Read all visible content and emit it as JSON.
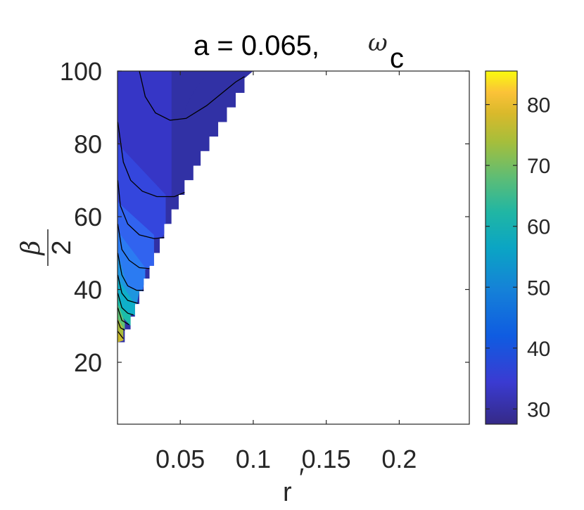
{
  "chart_data": {
    "type": "heatmap",
    "title": "a = 0.065,",
    "title_symbol": "ω",
    "title_symbol_sub": "c",
    "xlabel": "r",
    "xlabel_prime": "′",
    "ylabel_numerator": "β",
    "ylabel_denominator": "2",
    "xlim": [
      0.007,
      0.248
    ],
    "ylim": [
      3,
      100
    ],
    "xticks": [
      {
        "value": 0.05,
        "label": "0.05"
      },
      {
        "value": 0.1,
        "label": "0.1"
      },
      {
        "value": 0.15,
        "label": "0.15"
      },
      {
        "value": 0.2,
        "label": "0.2"
      }
    ],
    "yticks": [
      {
        "value": 20,
        "label": "20"
      },
      {
        "value": 40,
        "label": "40"
      },
      {
        "value": 60,
        "label": "60"
      },
      {
        "value": 80,
        "label": "80"
      },
      {
        "value": 100,
        "label": "100"
      }
    ],
    "colorbar": {
      "colormap": "parula",
      "range": [
        27.5,
        85.5
      ],
      "ticks": [
        {
          "value": 30,
          "label": "30"
        },
        {
          "value": 40,
          "label": "40"
        },
        {
          "value": 50,
          "label": "50"
        },
        {
          "value": 60,
          "label": "60"
        },
        {
          "value": 70,
          "label": "70"
        },
        {
          "value": 80,
          "label": "80"
        }
      ]
    },
    "valid_region_boundary": [
      [
        0.0072,
        25.5
      ],
      [
        0.012,
        25.5
      ],
      [
        0.012,
        29
      ],
      [
        0.016,
        29
      ],
      [
        0.016,
        32.5
      ],
      [
        0.019,
        32.5
      ],
      [
        0.019,
        36
      ],
      [
        0.022,
        36
      ],
      [
        0.022,
        39.5
      ],
      [
        0.025,
        39.5
      ],
      [
        0.025,
        43
      ],
      [
        0.029,
        43
      ],
      [
        0.029,
        46.5
      ],
      [
        0.032,
        46.5
      ],
      [
        0.032,
        50
      ],
      [
        0.036,
        50
      ],
      [
        0.036,
        54
      ],
      [
        0.039,
        54
      ],
      [
        0.039,
        58
      ],
      [
        0.044,
        58
      ],
      [
        0.044,
        62
      ],
      [
        0.049,
        62
      ],
      [
        0.049,
        66
      ],
      [
        0.053,
        66
      ],
      [
        0.053,
        70
      ],
      [
        0.059,
        70
      ],
      [
        0.059,
        74
      ],
      [
        0.064,
        74
      ],
      [
        0.064,
        78
      ],
      [
        0.07,
        78
      ],
      [
        0.07,
        82
      ],
      [
        0.076,
        82
      ],
      [
        0.076,
        86
      ],
      [
        0.082,
        86
      ],
      [
        0.082,
        90
      ],
      [
        0.088,
        90
      ],
      [
        0.088,
        94
      ],
      [
        0.094,
        94
      ],
      [
        0.094,
        98
      ],
      [
        0.1,
        100
      ],
      [
        0.0072,
        100
      ]
    ],
    "contour_levels": [
      {
        "level": 29.5,
        "color": "#3131a5",
        "points": [
          [
            0.0072,
            100
          ],
          [
            0.07,
            100
          ],
          [
            0.062,
            96
          ],
          [
            0.056,
            92
          ],
          [
            0.05,
            86
          ],
          [
            0.044,
            89
          ],
          [
            0.035,
            92
          ],
          [
            0.024,
            100
          ]
        ]
      },
      {
        "level": 33,
        "color": "#3636c6",
        "points": [
          [
            0.0072,
            86
          ],
          [
            0.008,
            78
          ],
          [
            0.012,
            73
          ],
          [
            0.018,
            69
          ],
          [
            0.026,
            66.5
          ],
          [
            0.037,
            65
          ],
          [
            0.044,
            65.5
          ],
          [
            0.044,
            100
          ],
          [
            0.0072,
            100
          ]
        ]
      },
      {
        "level": 37,
        "color": "#3446dd",
        "points": [
          [
            0.0072,
            80
          ],
          [
            0.0072,
            64
          ],
          [
            0.01,
            60
          ],
          [
            0.018,
            56
          ],
          [
            0.025,
            54.5
          ],
          [
            0.037,
            54
          ],
          [
            0.04,
            56
          ],
          [
            0.04,
            66
          ],
          [
            0.0072,
            80
          ]
        ]
      },
      {
        "level": 40,
        "color": "#3163ef",
        "points": [
          [
            0.0072,
            56
          ],
          [
            0.009,
            52
          ],
          [
            0.016,
            47
          ],
          [
            0.026,
            45.5
          ],
          [
            0.032,
            46.5
          ],
          [
            0.032,
            55
          ],
          [
            0.0072,
            64
          ]
        ]
      },
      {
        "level": 43,
        "color": "#2b7bf2",
        "points": [
          [
            0.0072,
            50
          ],
          [
            0.009,
            45
          ],
          [
            0.014,
            40
          ],
          [
            0.024,
            39.5
          ],
          [
            0.026,
            43
          ],
          [
            0.026,
            46
          ],
          [
            0.0072,
            56
          ]
        ]
      },
      {
        "level": 47,
        "color": "#1f95df",
        "points": [
          [
            0.0072,
            43
          ],
          [
            0.009,
            40
          ],
          [
            0.014,
            36
          ],
          [
            0.02,
            35.5
          ],
          [
            0.022,
            39.5
          ],
          [
            0.014,
            40.5
          ],
          [
            0.0072,
            50
          ]
        ]
      },
      {
        "level": 52,
        "color": "#0fafc9",
        "points": [
          [
            0.0072,
            39
          ],
          [
            0.01,
            35
          ],
          [
            0.016,
            33
          ],
          [
            0.019,
            33
          ],
          [
            0.019,
            36
          ],
          [
            0.0072,
            43
          ]
        ]
      },
      {
        "level": 57,
        "color": "#1bbcaa",
        "points": [
          [
            0.0072,
            36
          ],
          [
            0.01,
            32.5
          ],
          [
            0.016,
            30
          ],
          [
            0.016,
            33
          ],
          [
            0.01,
            35
          ],
          [
            0.0072,
            39
          ]
        ]
      },
      {
        "level": 63,
        "color": "#5fc274",
        "points": [
          [
            0.0072,
            32
          ],
          [
            0.011,
            29.5
          ],
          [
            0.012,
            29
          ],
          [
            0.012,
            31
          ],
          [
            0.0072,
            36
          ]
        ]
      },
      {
        "level": 69,
        "color": "#a9bd3a",
        "points": [
          [
            0.0072,
            29
          ],
          [
            0.011,
            27
          ],
          [
            0.011,
            29.5
          ],
          [
            0.0072,
            32
          ]
        ]
      },
      {
        "level": 76,
        "color": "#c8b92c",
        "points": [
          [
            0.0072,
            25.5
          ],
          [
            0.011,
            26
          ],
          [
            0.011,
            27
          ],
          [
            0.0072,
            29
          ]
        ]
      }
    ],
    "contour_lines": [
      [
        [
          0.022,
          100
        ],
        [
          0.026,
          93
        ],
        [
          0.033,
          88.5
        ],
        [
          0.043,
          86.5
        ],
        [
          0.054,
          87
        ],
        [
          0.068,
          90.5
        ],
        [
          0.088,
          97
        ],
        [
          0.094,
          98.5
        ]
      ],
      [
        [
          0.0072,
          86
        ],
        [
          0.011,
          75
        ],
        [
          0.016,
          70
        ],
        [
          0.024,
          67
        ],
        [
          0.034,
          65.5
        ],
        [
          0.046,
          65.5
        ],
        [
          0.058,
          67.5
        ],
        [
          0.064,
          69.5
        ]
      ],
      [
        [
          0.0072,
          70
        ],
        [
          0.009,
          63
        ],
        [
          0.014,
          58
        ],
        [
          0.022,
          55
        ],
        [
          0.032,
          54
        ],
        [
          0.044,
          54.5
        ],
        [
          0.049,
          55.5
        ]
      ],
      [
        [
          0.0072,
          58
        ],
        [
          0.01,
          51
        ],
        [
          0.015,
          48
        ],
        [
          0.022,
          46
        ],
        [
          0.03,
          45.7
        ],
        [
          0.036,
          46.3
        ]
      ],
      [
        [
          0.0072,
          50
        ],
        [
          0.01,
          44
        ],
        [
          0.014,
          41
        ],
        [
          0.02,
          39.8
        ],
        [
          0.025,
          39.8
        ]
      ],
      [
        [
          0.0072,
          44
        ],
        [
          0.01,
          39
        ],
        [
          0.014,
          37
        ],
        [
          0.021,
          36.2
        ]
      ],
      [
        [
          0.0072,
          39
        ],
        [
          0.01,
          35
        ],
        [
          0.014,
          33.5
        ],
        [
          0.018,
          33
        ]
      ],
      [
        [
          0.0072,
          35
        ],
        [
          0.01,
          31.5
        ],
        [
          0.015,
          30.3
        ]
      ],
      [
        [
          0.0072,
          31.5
        ],
        [
          0.009,
          29.5
        ],
        [
          0.012,
          28.8
        ]
      ],
      [
        [
          0.0072,
          28.5
        ],
        [
          0.01,
          27
        ],
        [
          0.011,
          26.5
        ]
      ]
    ]
  }
}
